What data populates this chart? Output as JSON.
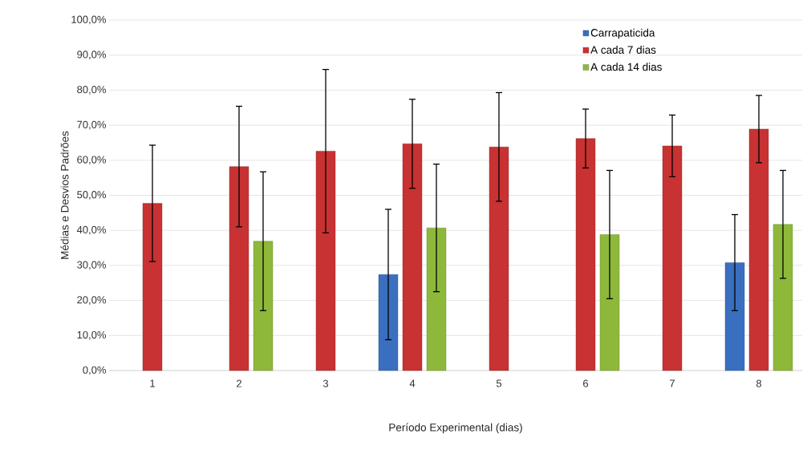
{
  "chart_data": {
    "type": "bar",
    "xlabel": "Período Experimental (dias)",
    "ylabel": "Médias e Desvios Padrões",
    "categories": [
      "1",
      "2",
      "3",
      "4",
      "5",
      "6",
      "7",
      "8"
    ],
    "series": [
      {
        "name": "Carrapaticida",
        "color": "#3a6fc0",
        "values": [
          null,
          null,
          null,
          27.4,
          null,
          null,
          null,
          30.8
        ],
        "errors": [
          null,
          null,
          null,
          18.6,
          null,
          null,
          null,
          13.7
        ]
      },
      {
        "name": "A cada 7 dias",
        "color": "#c83232",
        "values": [
          47.7,
          58.2,
          62.6,
          64.7,
          63.8,
          66.2,
          64.1,
          68.9
        ],
        "errors": [
          16.6,
          17.2,
          23.3,
          12.7,
          15.5,
          8.4,
          8.8,
          9.6
        ]
      },
      {
        "name": "A cada 14 dias",
        "color": "#8db83a",
        "values": [
          null,
          36.9,
          null,
          40.7,
          null,
          38.8,
          null,
          41.7
        ],
        "errors": [
          null,
          19.8,
          null,
          18.2,
          null,
          18.3,
          null,
          15.4
        ]
      }
    ],
    "ylim": [
      0,
      100
    ],
    "yticks": [
      {
        "value": 0,
        "label": "0,0%"
      },
      {
        "value": 10,
        "label": "10,0%"
      },
      {
        "value": 20,
        "label": "20,0%"
      },
      {
        "value": 30,
        "label": "30,0%"
      },
      {
        "value": 40,
        "label": "40,0%"
      },
      {
        "value": 50,
        "label": "50,0%"
      },
      {
        "value": 60,
        "label": "60,0%"
      },
      {
        "value": 70,
        "label": "70,0%"
      },
      {
        "value": 80,
        "label": "80,0%"
      },
      {
        "value": 90,
        "label": "90,0%"
      },
      {
        "value": 100,
        "label": "100,0%"
      }
    ],
    "grid": "y",
    "legend": "top right"
  }
}
